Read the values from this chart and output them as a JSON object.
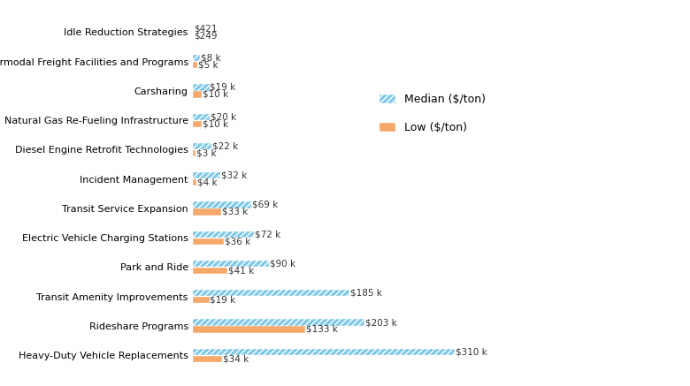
{
  "categories": [
    "Heavy-Duty Vehicle Replacements",
    "Rideshare Programs",
    "Transit Amenity Improvements",
    "Park and Ride",
    "Electric Vehicle Charging Stations",
    "Transit Service Expansion",
    "Incident Management",
    "Diesel Engine Retrofit Technologies",
    "Natural Gas Re-Fueling Infrastructure",
    "Carsharing",
    "Intermodal Freight Facilities and Programs",
    "Idle Reduction Strategies"
  ],
  "median_values": [
    310,
    203,
    185,
    90,
    72,
    69,
    32,
    22,
    20,
    19,
    8,
    0
  ],
  "low_values": [
    34,
    133,
    19,
    41,
    36,
    33,
    4,
    3,
    10,
    10,
    5,
    0
  ],
  "median_labels": [
    "$310 k",
    "$203 k",
    "$185 k",
    "$90 k",
    "$72 k",
    "$69 k",
    "$32 k",
    "$22 k",
    "$20 k",
    "$19 k",
    "$8 k",
    "$421"
  ],
  "low_labels": [
    "$34 k",
    "$133 k",
    "$19 k",
    "$41 k",
    "$36 k",
    "$33 k",
    "$4 k",
    "$3 k",
    "$10 k",
    "$10 k",
    "$5 k",
    "$249"
  ],
  "median_color": "#7dc8e8",
  "low_color": "#f5a86a",
  "median_legend": "Median ($/ton)",
  "low_legend": "Low ($/ton)",
  "bar_height": 0.22,
  "background_color": "#ffffff",
  "label_fontsize": 7.5,
  "ytick_fontsize": 8,
  "legend_fontsize": 9
}
